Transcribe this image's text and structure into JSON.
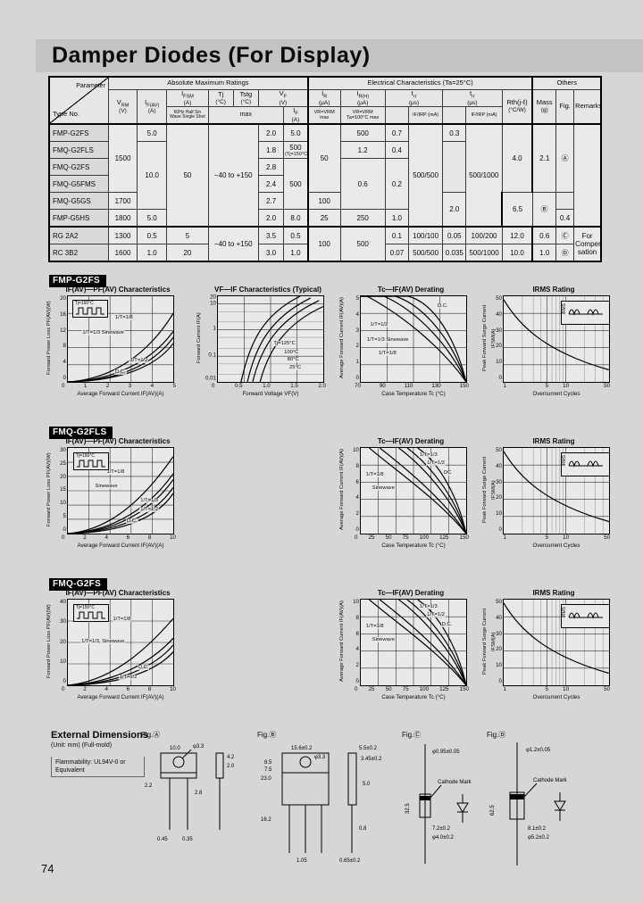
{
  "page": {
    "title": "Damper Diodes (For Display)",
    "page_number": "74"
  },
  "table": {
    "groups": {
      "amr": "Absolute Maximum Ratings",
      "ec": "Electrical Characteristics  (Ta=25°C)",
      "others": "Others"
    },
    "corner": {
      "parameter": "Parameter",
      "type_no": "Type No."
    },
    "col": {
      "vrm": {
        "sym": "V",
        "sub": "RM",
        "unit": "(V)"
      },
      "ifav": {
        "sym": "I",
        "sub": "F(AV)",
        "unit": "(A)"
      },
      "ifsm": {
        "sym": "I",
        "sub": "FSM",
        "unit": "(A)",
        "note": "60Hz Half Sin Wave Single Shot"
      },
      "tj": {
        "sym": "Tj",
        "unit": "(°C)"
      },
      "tstg": {
        "sym": "Tstg",
        "unit": "(°C)"
      },
      "vf": {
        "sym": "V",
        "sub": "F",
        "unit": "(V)"
      },
      "max_label": "max",
      "ifm": {
        "sym": "I",
        "sub": "F",
        "unit": "(A)"
      },
      "ir": {
        "sym": "I",
        "sub": "R",
        "unit": "(μA)",
        "cond": "VR=VRM max"
      },
      "irh": {
        "sym": "I",
        "sub": "R(H)",
        "unit": "(μA)",
        "cond": "VR=VRM Ta=100°C max"
      },
      "trr": {
        "sym": "t",
        "sub": "rr",
        "unit": "(μs)",
        "cond": "IF/IRP (mA)"
      },
      "rth": {
        "sym": "Rth(j-ℓ)",
        "unit": "(°C/W)"
      },
      "mass": {
        "sym": "Mass",
        "unit": "(g)"
      },
      "fig": "Fig.",
      "remarks": "Remarks"
    },
    "rows": [
      {
        "type": "FMP-G2FS",
        "vrm": "1500",
        "ifav": "5.0",
        "ifsm": "50",
        "tj_tstg": "−40 to +150",
        "vf": "2.0",
        "if": "5.0",
        "ir": "50",
        "irh": "500",
        "trr1": "0.7",
        "ifirp1": "500/500",
        "trr2": "0.3",
        "ifirp2": "500/1000",
        "rth": "4.0",
        "mass": "2.1",
        "fig": "Ⓐ",
        "remarks": ""
      },
      {
        "type": "FMQ-G2FLS",
        "vf": "1.8",
        "if": "10.0",
        "irh": "500",
        "irh_note": "(Tj=150°C)",
        "trr1": "1.2",
        "trr2": "0.4"
      },
      {
        "type": "FMQ-G2FS",
        "vf": "2.8",
        "irh": "500",
        "trr1": "0.6",
        "trr2": "0.2"
      },
      {
        "type": "FMQ-G5FMS",
        "vf": "2.4"
      },
      {
        "type": "FMQ-G5GS",
        "vrm": "1700",
        "vf": "2.7",
        "ir": "100",
        "rth": "2.0",
        "mass": "6.5",
        "fig": "Ⓑ"
      },
      {
        "type": "FMP-G5HS",
        "vrm": "1800",
        "ifav": "5.0",
        "vf": "2.0",
        "if": "8.0",
        "ir": "25",
        "irh": "250",
        "trr1": "1.0",
        "trr2": "0.4"
      },
      {
        "type": "RG 2A2",
        "vrm": "1300",
        "ifav": "0.5",
        "ifsm": "5",
        "tj_tstg": "−40 to +150",
        "vf": "3.5",
        "if": "0.5",
        "ir": "100",
        "irh": "500",
        "trr1": "0.1",
        "ifirp1": "100/100",
        "trr2": "0.05",
        "ifirp2": "100/200",
        "rth": "12.0",
        "mass": "0.6",
        "fig": "Ⓒ",
        "remarks": "For Compen- sation"
      },
      {
        "type": "RC 3B2",
        "vrm": "1600",
        "ifav": "1.0",
        "ifsm": "20",
        "vf": "3.0",
        "if": "1.0",
        "trr1": "0.07",
        "ifirp1": "500/500",
        "trr2": "0.035",
        "ifirp2": "500/1000",
        "rth": "10.0",
        "mass": "1.0",
        "fig": "Ⓓ"
      }
    ]
  },
  "sections": [
    {
      "badge": "FMP-G2FS",
      "pf": {
        "type": "line",
        "title": "IF(AV)—PF(AV) Characteristics",
        "ylabel": "Forward Power Loss  PF(AV)(W)",
        "xlabel": "Average Forward Current  IF(AV)(A)",
        "yticks": [
          "20",
          "16",
          "12",
          "8",
          "4",
          "0"
        ],
        "xticks": [
          "0",
          "1",
          "2",
          "3",
          "4",
          "5"
        ],
        "curves": [
          "1/T=1/8",
          "1/T=1/3 Sinewave",
          "1/T=1/2",
          "D.C."
        ],
        "inset": "Tj=150°C"
      },
      "vfif": {
        "type": "line",
        "title": "VF—IF Characteristics (Typical)",
        "ylabel": "Forward Current  IF(A)",
        "xlabel": "Forward Voltage  VF(V)",
        "yticks": [
          "20",
          "10",
          "1",
          "0.1",
          "0.01"
        ],
        "xticks": [
          "0",
          "0.5",
          "1.0",
          "1.5",
          "2.0"
        ],
        "curves": [
          "Tj=125°C",
          "100°C",
          "80°C",
          "25°C"
        ]
      },
      "derate": {
        "type": "line",
        "title": "Tc—IF(AV) Derating",
        "ylabel": "Average Forward Current  IF(AV)(A)",
        "xlabel": "Case Temperature  Tc (°C)",
        "yticks": [
          "5",
          "4",
          "3",
          "2",
          "1",
          "0"
        ],
        "xticks": [
          "70",
          "90",
          "110",
          "130",
          "150"
        ],
        "curves": [
          "D.C.",
          "1/T=1/2",
          "1/T=1/3 Sinewave",
          "1/T=1/8"
        ]
      },
      "irms": {
        "type": "line",
        "title": "IRMS Rating",
        "ylabel": "Peak Forward Surge Current  IFSM(A)",
        "xlabel": "Overcurrent Cycles",
        "yticks": [
          "50",
          "40",
          "30",
          "20",
          "10",
          "0"
        ],
        "xticks": [
          "1",
          "5",
          "10",
          "50"
        ],
        "inset": "IRMS"
      }
    },
    {
      "badge": "FMQ-G2FLS",
      "pf": {
        "type": "line",
        "title": "IF(AV)—PF(AV) Characteristics",
        "ylabel": "Forward Power Loss  PF(AV)(W)",
        "xlabel": "Average Forward Current  IF(AV)(A)",
        "yticks": [
          "30",
          "25",
          "20",
          "15",
          "10",
          "5",
          "0"
        ],
        "xticks": [
          "0",
          "2",
          "4",
          "6",
          "8",
          "10"
        ],
        "curves": [
          "1/T=1/8",
          "Sinewave",
          "1/T=1/3",
          "1/T=1/2",
          "D.C."
        ],
        "inset": "Tj=150°C"
      },
      "derate": {
        "type": "line",
        "title": "Tc—IF(AV) Derating",
        "ylabel": "Average Forward Current  IF(AV)(A)",
        "xlabel": "Case Temperature  Tc (°C)",
        "yticks": [
          "10",
          "8",
          "6",
          "4",
          "2",
          "0"
        ],
        "xticks": [
          "0",
          "25",
          "50",
          "75",
          "100",
          "125",
          "150"
        ],
        "curves": [
          "1/T=1/8",
          "Sinewave",
          "1/T=1/3",
          "1/T=1/2",
          "DC"
        ]
      },
      "irms": {
        "type": "line",
        "title": "IRMS Rating",
        "ylabel": "Peak Forward Surge Current  IFSM(A)",
        "xlabel": "Overcurrent Cycles",
        "yticks": [
          "50",
          "40",
          "30",
          "20",
          "10",
          "0"
        ],
        "xticks": [
          "1",
          "5",
          "10",
          "50"
        ],
        "inset": "IRMS"
      }
    },
    {
      "badge": "FMQ-G2FS",
      "pf": {
        "type": "line",
        "title": "IF(AV)—PF(AV) Characteristics",
        "ylabel": "Forward Power Loss  PF(AV)(W)",
        "xlabel": "Average Forward Current  IF(AV)(A)",
        "yticks": [
          "40",
          "30",
          "20",
          "10",
          "0"
        ],
        "xticks": [
          "0",
          "2",
          "4",
          "6",
          "8",
          "10"
        ],
        "curves": [
          "1/T=1/8",
          "1/T=1/3, Sinewave",
          "D.C.",
          "1/T=1/2"
        ],
        "inset": "Tj=150°C"
      },
      "derate": {
        "type": "line",
        "title": "Tc—IF(AV) Derating",
        "ylabel": "Average Forward Current  IF(AV)(A)",
        "xlabel": "Case Temperature  Tc (°C)",
        "yticks": [
          "10",
          "8",
          "6",
          "4",
          "2",
          "0"
        ],
        "xticks": [
          "0",
          "25",
          "50",
          "75",
          "100",
          "125",
          "150"
        ],
        "curves": [
          "1/T=1/8",
          "Sinewave",
          "1/T=1/3",
          "1/T=1/2",
          "D.C."
        ]
      },
      "irms": {
        "type": "line",
        "title": "IRMS Rating",
        "ylabel": "Peak Forward Surge Current  IFSM(A)",
        "xlabel": "Overcurrent Cycles",
        "yticks": [
          "50",
          "40",
          "30",
          "20",
          "10",
          "0"
        ],
        "xticks": [
          "1",
          "5",
          "10",
          "50"
        ],
        "inset": "IRMS"
      }
    }
  ],
  "external": {
    "heading": "External Dimensions",
    "unit_note": "(Unit: mm) (Full-mold)",
    "flammability": "Flammability: UL94V-0 or Equivalent",
    "figs": [
      {
        "label": "Fig.Ⓐ",
        "dims": [
          "10.0",
          "φ3.3",
          "4.2",
          "2.0",
          "2.2",
          "2.8",
          "0.45",
          "0.35"
        ]
      },
      {
        "label": "Fig.Ⓑ",
        "dims": [
          "15.6±0.2",
          "φ3.3",
          "5.5±0.2",
          "3.45±0.2",
          "23.0",
          "16.2",
          "8.5",
          "7.5",
          "5.0",
          "0.8",
          "1.05",
          "0.65±0.2"
        ]
      },
      {
        "label": "Fig.Ⓒ",
        "dims": [
          "φ0.95±0.05",
          "32.5",
          "7.2±0.2",
          "φ4.0±0.2"
        ],
        "note": "Cathode Mark"
      },
      {
        "label": "Fig.Ⓓ",
        "dims": [
          "φ1.2±0.05",
          "62.5",
          "8.1±0.2",
          "φ5.2±0.2"
        ],
        "note": "Cathode Mark"
      }
    ]
  }
}
